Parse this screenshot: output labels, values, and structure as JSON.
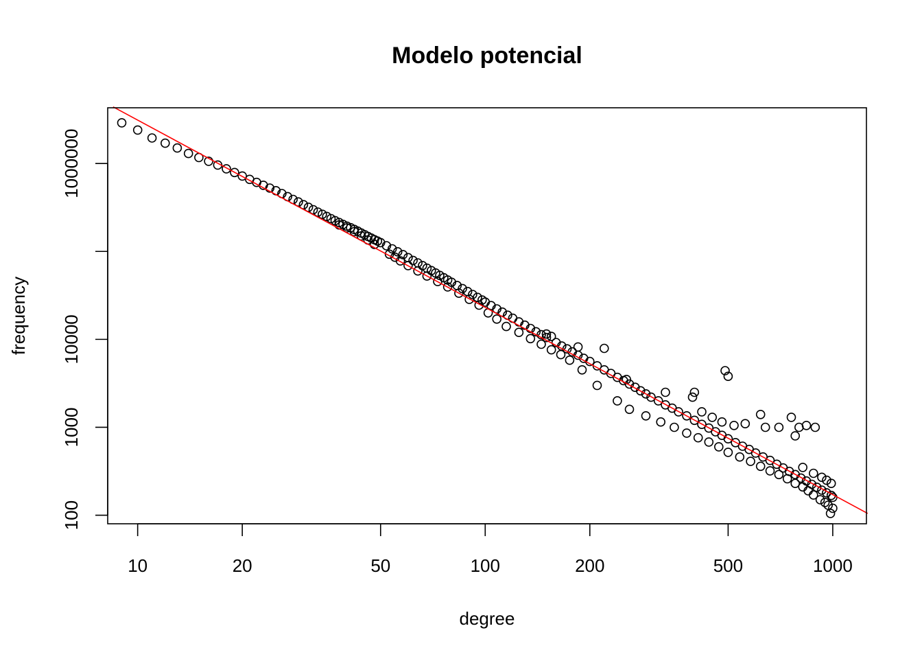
{
  "chart_data": {
    "type": "scatter",
    "title": "Modelo potencial",
    "xlabel": "degree",
    "ylabel": "frequency",
    "x_scale": "log",
    "y_scale": "log",
    "xlim": [
      8.2,
      1250
    ],
    "ylim": [
      80,
      4300000
    ],
    "x_ticks": [
      10,
      20,
      50,
      100,
      200,
      500,
      1000
    ],
    "x_tick_labels": [
      "10",
      "20",
      "50",
      "100",
      "200",
      "500",
      "1000"
    ],
    "y_ticks": [
      100,
      1000,
      10000,
      100000,
      1000000
    ],
    "y_tick_labels": [
      "100",
      "1000",
      "10000",
      "",
      "1000000"
    ],
    "grid": false,
    "legend": "none",
    "colors": {
      "points": "#000000",
      "fit_line": "#ff0000",
      "axes": "#000000"
    },
    "fit_line": {
      "type": "power-law",
      "points": [
        [
          8.5,
          4400000
        ],
        [
          1260,
          105
        ]
      ]
    },
    "series": [
      {
        "values": [
          [
            9,
            2900000
          ],
          [
            10,
            2400000
          ],
          [
            11,
            1950000
          ],
          [
            12,
            1700000
          ],
          [
            13,
            1500000
          ],
          [
            14,
            1300000
          ],
          [
            15,
            1170000
          ],
          [
            16,
            1060000
          ],
          [
            17,
            960000
          ],
          [
            18,
            870000
          ],
          [
            19,
            790000
          ],
          [
            20,
            720000
          ],
          [
            21,
            660000
          ],
          [
            22,
            610000
          ],
          [
            23,
            565000
          ],
          [
            24,
            525000
          ],
          [
            25,
            490000
          ],
          [
            26,
            455000
          ],
          [
            27,
            420000
          ],
          [
            28,
            390000
          ],
          [
            29,
            365000
          ],
          [
            30,
            340000
          ],
          [
            31,
            318000
          ],
          [
            32,
            298000
          ],
          [
            33,
            280000
          ],
          [
            34,
            264000
          ],
          [
            35,
            250000
          ],
          [
            36,
            236000
          ],
          [
            37,
            224000
          ],
          [
            38,
            213000
          ],
          [
            39,
            203000
          ],
          [
            40,
            194000
          ],
          [
            41,
            186000
          ],
          [
            42,
            178000
          ],
          [
            43,
            170000
          ],
          [
            44,
            162000
          ],
          [
            45,
            155000
          ],
          [
            46,
            148000
          ],
          [
            47,
            142000
          ],
          [
            48,
            136000
          ],
          [
            49,
            131000
          ],
          [
            50,
            126000
          ],
          [
            52,
            116000
          ],
          [
            54,
            107000
          ],
          [
            56,
            99000
          ],
          [
            58,
            92000
          ],
          [
            60,
            85000
          ],
          [
            62,
            79000
          ],
          [
            64,
            74000
          ],
          [
            66,
            69000
          ],
          [
            68,
            64500
          ],
          [
            70,
            60500
          ],
          [
            72,
            56800
          ],
          [
            74,
            53400
          ],
          [
            76,
            50200
          ],
          [
            78,
            47300
          ],
          [
            80,
            44600
          ],
          [
            83,
            41000
          ],
          [
            86,
            37800
          ],
          [
            89,
            35000
          ],
          [
            92,
            32400
          ],
          [
            95,
            30000
          ],
          [
            98,
            28000
          ],
          [
            100,
            26500
          ],
          [
            104,
            24200
          ],
          [
            108,
            22200
          ],
          [
            112,
            20400
          ],
          [
            116,
            18800
          ],
          [
            120,
            17400
          ],
          [
            125,
            15800
          ],
          [
            130,
            14500
          ],
          [
            135,
            13300
          ],
          [
            140,
            12200
          ],
          [
            145,
            11300
          ],
          [
            150,
            10500
          ],
          [
            155,
            10800
          ],
          [
            160,
            9200
          ],
          [
            166,
            8400
          ],
          [
            172,
            7800
          ],
          [
            178,
            7200
          ],
          [
            185,
            6600
          ],
          [
            192,
            6100
          ],
          [
            200,
            5600
          ],
          [
            210,
            5000
          ],
          [
            220,
            4500
          ],
          [
            230,
            4100
          ],
          [
            240,
            3700
          ],
          [
            250,
            3400
          ],
          [
            260,
            3100
          ],
          [
            270,
            2850
          ],
          [
            280,
            2600
          ],
          [
            290,
            2400
          ],
          [
            300,
            2200
          ],
          [
            315,
            2000
          ],
          [
            330,
            1800
          ],
          [
            345,
            1650
          ],
          [
            360,
            1500
          ],
          [
            380,
            1350
          ],
          [
            400,
            1200
          ],
          [
            420,
            1080
          ],
          [
            440,
            980
          ],
          [
            460,
            890
          ],
          [
            480,
            810
          ],
          [
            500,
            740
          ],
          [
            525,
            670
          ],
          [
            550,
            610
          ],
          [
            575,
            560
          ],
          [
            600,
            510
          ],
          [
            630,
            460
          ],
          [
            660,
            420
          ],
          [
            690,
            380
          ],
          [
            720,
            345
          ],
          [
            750,
            315
          ],
          [
            780,
            290
          ],
          [
            810,
            265
          ],
          [
            840,
            245
          ],
          [
            870,
            225
          ],
          [
            900,
            208
          ],
          [
            930,
            193
          ],
          [
            960,
            180
          ],
          [
            990,
            168
          ],
          [
            1000,
            160
          ],
          [
            150,
            11500
          ],
          [
            185,
            8200
          ],
          [
            220,
            7900
          ],
          [
            255,
            3500
          ],
          [
            330,
            2500
          ],
          [
            395,
            2200
          ],
          [
            400,
            2500
          ],
          [
            420,
            1500
          ],
          [
            450,
            1300
          ],
          [
            480,
            1150
          ],
          [
            490,
            4400
          ],
          [
            500,
            3800
          ],
          [
            520,
            1050
          ],
          [
            560,
            1100
          ],
          [
            620,
            1400
          ],
          [
            640,
            1000
          ],
          [
            700,
            1000
          ],
          [
            760,
            1300
          ],
          [
            800,
            1000
          ],
          [
            840,
            1050
          ],
          [
            890,
            1000
          ],
          [
            780,
            800
          ],
          [
            820,
            350
          ],
          [
            880,
            300
          ],
          [
            930,
            270
          ],
          [
            960,
            250
          ],
          [
            990,
            230
          ],
          [
            1000,
            120
          ],
          [
            985,
            105
          ],
          [
            970,
            130
          ],
          [
            950,
            140
          ],
          [
            920,
            150
          ],
          [
            880,
            170
          ],
          [
            850,
            190
          ],
          [
            820,
            210
          ],
          [
            780,
            230
          ],
          [
            740,
            260
          ],
          [
            700,
            290
          ],
          [
            660,
            320
          ],
          [
            620,
            360
          ],
          [
            580,
            410
          ],
          [
            540,
            460
          ],
          [
            500,
            520
          ],
          [
            470,
            600
          ],
          [
            440,
            680
          ],
          [
            410,
            760
          ],
          [
            380,
            860
          ],
          [
            350,
            1000
          ],
          [
            320,
            1150
          ],
          [
            290,
            1350
          ],
          [
            260,
            1600
          ],
          [
            240,
            2000
          ],
          [
            210,
            3000
          ],
          [
            190,
            4500
          ],
          [
            175,
            5800
          ],
          [
            165,
            6700
          ],
          [
            155,
            7600
          ],
          [
            145,
            8800
          ],
          [
            135,
            10200
          ],
          [
            125,
            12000
          ],
          [
            115,
            14000
          ],
          [
            108,
            17000
          ],
          [
            102,
            20000
          ],
          [
            96,
            24500
          ],
          [
            90,
            28500
          ],
          [
            84,
            33500
          ],
          [
            78,
            39500
          ],
          [
            73,
            45500
          ],
          [
            68,
            52500
          ],
          [
            64,
            60000
          ],
          [
            60,
            69000
          ],
          [
            57,
            78000
          ],
          [
            55,
            86000
          ],
          [
            53,
            93000
          ],
          [
            48,
            120000
          ],
          [
            46,
            135000
          ],
          [
            44,
            150000
          ],
          [
            42,
            168000
          ],
          [
            40,
            185000
          ],
          [
            38,
            200000
          ]
        ]
      }
    ]
  }
}
